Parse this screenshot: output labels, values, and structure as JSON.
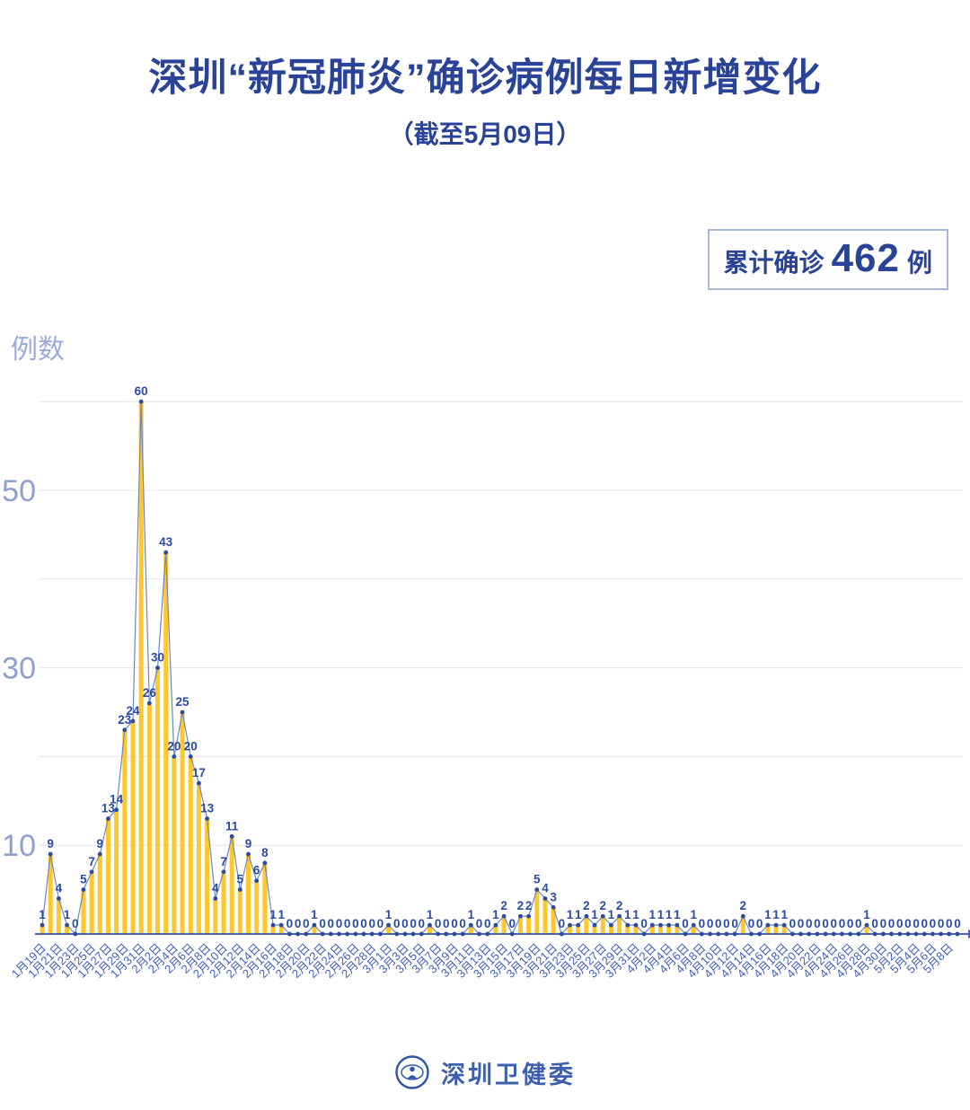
{
  "header": {
    "title": "深圳“新冠肺炎”确诊病例每日新增变化",
    "subtitle": "（截至5月09日）"
  },
  "summary_badge": {
    "prefix": "累计确诊",
    "value": "462",
    "suffix": "例"
  },
  "footer": {
    "org": "深圳卫健委",
    "logo_icon": "shenzhen-health-commission-seal"
  },
  "colors": {
    "title_blue": "#2b4397",
    "bar_yellow": "#ffc72c",
    "line_blue": "#6d87c4",
    "point_blue": "#2a4aa4",
    "value_label_blue": "#2a4aa4",
    "x_tick_blue": "#3f5fba",
    "y_tick_blue": "#8e9fd2",
    "axis_blue": "#4a63ad",
    "gridline_gray": "#e5e5e5",
    "badge_border": "#a9b7da"
  },
  "chart_data": {
    "type": "bar",
    "subtype": "bar-with-line-and-point-labels",
    "title": "深圳“新冠肺炎”确诊病例每日新增变化",
    "subtitle": "（截至5月09日）",
    "xlabel": "",
    "ylabel": "例数",
    "ylim": [
      0,
      62
    ],
    "y_gridlines": [
      10,
      20,
      30,
      40,
      50,
      60
    ],
    "y_ticks": [
      10,
      30,
      50
    ],
    "x_tick_step": 2,
    "legend": "none",
    "cumulative_total": 462,
    "categories": [
      "1月19日",
      "1月20日",
      "1月21日",
      "1月22日",
      "1月23日",
      "1月24日",
      "1月25日",
      "1月26日",
      "1月27日",
      "1月28日",
      "1月29日",
      "1月30日",
      "1月31日",
      "2月1日",
      "2月2日",
      "2月3日",
      "2月4日",
      "2月5日",
      "2月6日",
      "2月7日",
      "2月8日",
      "2月9日",
      "2月10日",
      "2月11日",
      "2月12日",
      "2月13日",
      "2月14日",
      "2月15日",
      "2月16日",
      "2月17日",
      "2月18日",
      "2月19日",
      "2月20日",
      "2月21日",
      "2月22日",
      "2月23日",
      "2月24日",
      "2月25日",
      "2月26日",
      "2月27日",
      "2月28日",
      "2月29日",
      "3月1日",
      "3月2日",
      "3月3日",
      "3月4日",
      "3月5日",
      "3月6日",
      "3月7日",
      "3月8日",
      "3月9日",
      "3月10日",
      "3月11日",
      "3月12日",
      "3月13日",
      "3月14日",
      "3月15日",
      "3月16日",
      "3月17日",
      "3月18日",
      "3月19日",
      "3月20日",
      "3月21日",
      "3月22日",
      "3月23日",
      "3月24日",
      "3月25日",
      "3月26日",
      "3月27日",
      "3月28日",
      "3月29日",
      "3月30日",
      "3月31日",
      "4月1日",
      "4月2日",
      "4月3日",
      "4月4日",
      "4月5日",
      "4月6日",
      "4月7日",
      "4月8日",
      "4月9日",
      "4月10日",
      "4月11日",
      "4月12日",
      "4月13日",
      "4月14日",
      "4月15日",
      "4月16日",
      "4月17日",
      "4月18日",
      "4月19日",
      "4月20日",
      "4月21日",
      "4月22日",
      "4月23日",
      "4月24日",
      "4月25日",
      "4月26日",
      "4月27日",
      "4月28日",
      "4月29日",
      "4月30日",
      "5月1日",
      "5月2日",
      "5月3日",
      "5月4日",
      "5月5日",
      "5月6日",
      "5月7日",
      "5月8日",
      "5月9日"
    ],
    "values": [
      1,
      9,
      4,
      1,
      0,
      5,
      7,
      9,
      13,
      14,
      23,
      24,
      60,
      26,
      30,
      43,
      20,
      25,
      20,
      17,
      13,
      4,
      7,
      11,
      5,
      9,
      6,
      8,
      1,
      1,
      0,
      0,
      0,
      1,
      0,
      0,
      0,
      0,
      0,
      0,
      0,
      0,
      1,
      0,
      0,
      0,
      0,
      1,
      0,
      0,
      0,
      0,
      1,
      0,
      0,
      1,
      2,
      0,
      2,
      2,
      5,
      4,
      3,
      0,
      1,
      1,
      2,
      1,
      2,
      1,
      2,
      1,
      1,
      0,
      1,
      1,
      1,
      1,
      0,
      1,
      0,
      0,
      0,
      0,
      0,
      2,
      0,
      0,
      1,
      1,
      1,
      0,
      0,
      0,
      0,
      0,
      0,
      0,
      0,
      0,
      1,
      0,
      0,
      0,
      0,
      0,
      0,
      0,
      0,
      0,
      0,
      0
    ]
  }
}
